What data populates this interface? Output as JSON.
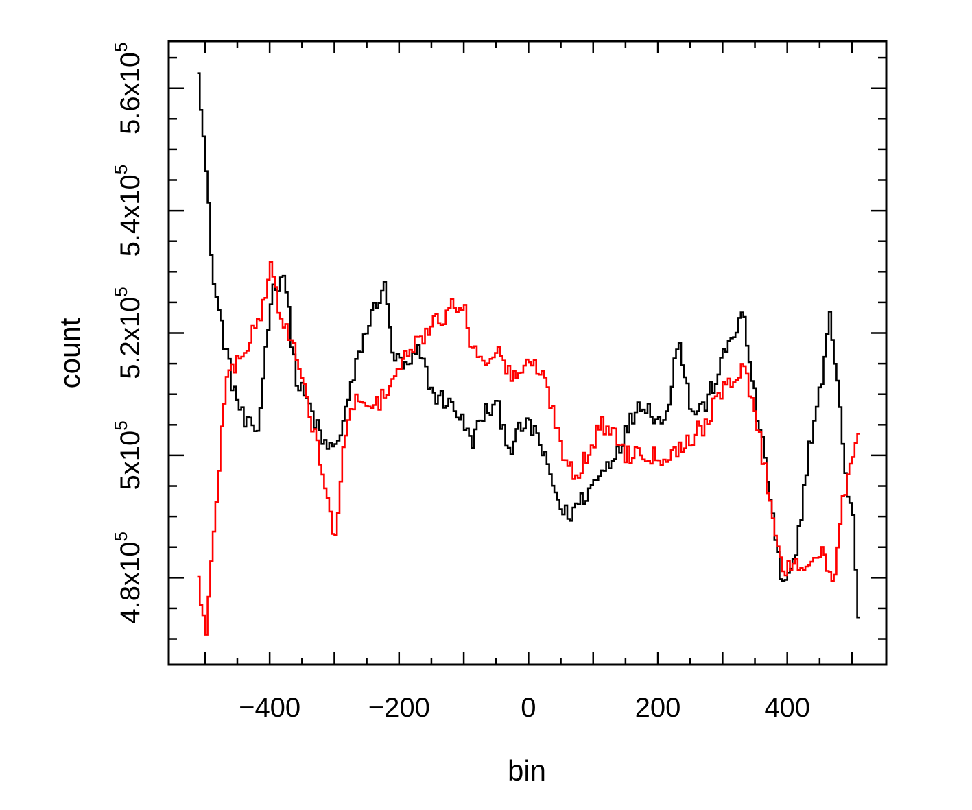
{
  "chart_data": {
    "type": "line",
    "title": "",
    "xlabel": "bin",
    "ylabel": "count",
    "xlim": [
      -556,
      553
    ],
    "ylim": [
      465800,
      567700
    ],
    "x_ticks": [
      {
        "value": -400,
        "label": "−400"
      },
      {
        "value": -200,
        "label": "−200"
      },
      {
        "value": 0,
        "label": "0"
      },
      {
        "value": 200,
        "label": "200"
      },
      {
        "value": 400,
        "label": "400"
      }
    ],
    "y_ticks": [
      {
        "value": 480000,
        "mantissa": "4.8x10",
        "exp": "5"
      },
      {
        "value": 500000,
        "mantissa": "5x10",
        "exp": "5"
      },
      {
        "value": 520000,
        "mantissa": "5.2x10",
        "exp": "5"
      },
      {
        "value": 540000,
        "mantissa": "5.4x10",
        "exp": "5"
      },
      {
        "value": 560000,
        "mantissa": "5.6x10",
        "exp": "5"
      }
    ],
    "grid": false,
    "legend": "none",
    "series": [
      {
        "name": "black",
        "color": "#000000",
        "x": [
          -512,
          -488,
          -460,
          -440,
          -420,
          -400,
          -380,
          -360,
          -340,
          -320,
          -300,
          -280,
          -260,
          -240,
          -225,
          -210,
          -190,
          -170,
          -150,
          -130,
          -110,
          -90,
          -70,
          -50,
          -30,
          -10,
          10,
          30,
          50,
          60,
          75,
          90,
          110,
          130,
          150,
          170,
          190,
          210,
          230,
          250,
          270,
          290,
          310,
          330,
          350,
          370,
          390,
          410,
          430,
          450,
          465,
          480,
          490,
          500,
          510
        ],
        "y": [
          564000,
          528000,
          512000,
          505000,
          504000,
          526000,
          530000,
          512000,
          508000,
          502000,
          501000,
          509000,
          518000,
          524000,
          528000,
          516000,
          514000,
          517000,
          510000,
          509000,
          507000,
          502000,
          507000,
          508000,
          501000,
          505000,
          504000,
          497000,
          491000,
          490000,
          492000,
          494000,
          497000,
          500000,
          504000,
          509000,
          507000,
          505000,
          520000,
          507000,
          508000,
          513000,
          519000,
          523000,
          508000,
          495000,
          478000,
          482000,
          500000,
          511000,
          523000,
          508000,
          494000,
          490000,
          470000
        ]
      },
      {
        "name": "red",
        "color": "#ff0000",
        "x": [
          -512,
          -500,
          -490,
          -470,
          -450,
          -430,
          -410,
          -400,
          -385,
          -370,
          -350,
          -330,
          -310,
          -300,
          -290,
          -270,
          -250,
          -230,
          -210,
          -190,
          -170,
          -150,
          -130,
          -110,
          -100,
          -90,
          -70,
          -50,
          -30,
          -10,
          10,
          30,
          50,
          70,
          90,
          110,
          130,
          150,
          170,
          190,
          210,
          230,
          250,
          270,
          290,
          310,
          330,
          350,
          370,
          390,
          410,
          430,
          450,
          470,
          480,
          490,
          500,
          510
        ],
        "y": [
          480000,
          470000,
          485000,
          512000,
          516000,
          519000,
          525000,
          532000,
          522000,
          520000,
          511000,
          503000,
          491000,
          486000,
          499000,
          510000,
          507000,
          509000,
          513000,
          516000,
          519000,
          521000,
          523000,
          525000,
          525000,
          517000,
          516000,
          517000,
          513000,
          514000,
          515000,
          510000,
          501000,
          497000,
          500000,
          505000,
          504000,
          500000,
          501000,
          500000,
          500000,
          501000,
          503000,
          505000,
          509000,
          512000,
          515000,
          506000,
          494000,
          481000,
          483000,
          482000,
          484000,
          479000,
          490000,
          496000,
          501000,
          506000
        ]
      }
    ]
  }
}
